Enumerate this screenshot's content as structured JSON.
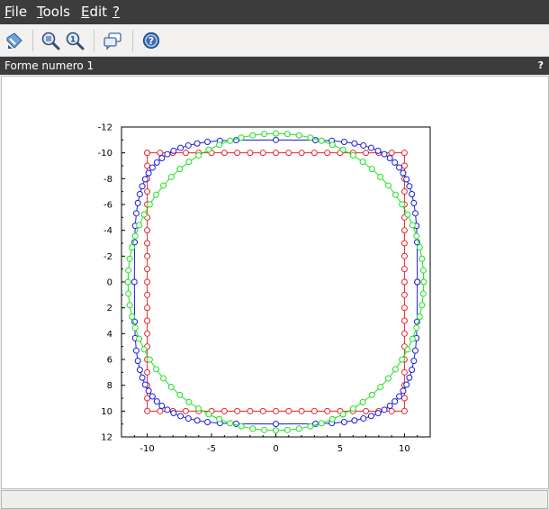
{
  "menu": {
    "file": {
      "first": "F",
      "rest": "ile"
    },
    "tools": {
      "first": "T",
      "rest": "ools"
    },
    "edit": {
      "first": "E",
      "rest": "dit"
    },
    "help": {
      "first": "?",
      "rest": ""
    }
  },
  "toolbar": {
    "buttons": [
      "select-icon",
      "zoom-in-icon",
      "zoom-fit-icon",
      "datatip-icon",
      "help-icon"
    ]
  },
  "figure": {
    "title": "Forme numero 1",
    "help_mark": "?"
  },
  "chart_data": {
    "type": "scatter",
    "title": "",
    "xlabel": "",
    "ylabel": "",
    "xlim": [
      -12,
      12
    ],
    "ylim": [
      -12,
      12
    ],
    "y_reversed": true,
    "xticks": [
      -10,
      -5,
      0,
      5,
      10
    ],
    "yticks": [
      -12,
      -10,
      -8,
      -6,
      -4,
      -2,
      0,
      2,
      4,
      6,
      8,
      10,
      12
    ],
    "grid": false,
    "series": [
      {
        "color": "#e8262c",
        "shape": "square",
        "marker": "circle",
        "points": 80,
        "param": {
          "half_side": 10
        }
      },
      {
        "color": "#1a1adf",
        "shape": "superellipse",
        "marker": "circle",
        "points": 80,
        "param": {
          "radius": 11,
          "exponent": 4
        }
      },
      {
        "color": "#20e020",
        "shape": "circle",
        "marker": "circle",
        "points": 80,
        "param": {
          "radius": 11.5
        }
      }
    ]
  }
}
